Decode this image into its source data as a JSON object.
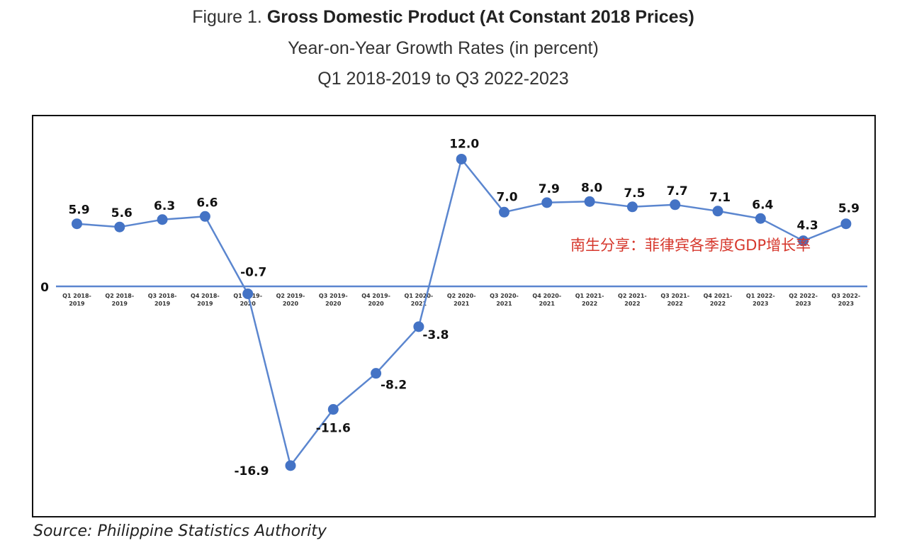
{
  "header": {
    "title_prefix": "Figure 1.",
    "title_bold": "Gross Domestic Product (At Constant 2018 Prices)",
    "subtitle": "Year-on-Year Growth Rates (in percent)",
    "period": "Q1 2018-2019 to Q3 2022-2023"
  },
  "source": "Source: Philippine Statistics Authority",
  "watermark": "南生分享：菲律宾各季度GDP增长率",
  "chart_data": {
    "type": "line",
    "title": "Gross Domestic Product (At Constant 2018 Prices)",
    "zero_label": "0",
    "categories": [
      [
        "Q1 2018-",
        "2019"
      ],
      [
        "Q2 2018-",
        "2019"
      ],
      [
        "Q3 2018-",
        "2019"
      ],
      [
        "Q4 2018-",
        "2019"
      ],
      [
        "Q1 2019-",
        "2020"
      ],
      [
        "Q2 2019-",
        "2020"
      ],
      [
        "Q3 2019-",
        "2020"
      ],
      [
        "Q4 2019-",
        "2020"
      ],
      [
        "Q1 2020-",
        "2021"
      ],
      [
        "Q2 2020-",
        "2021"
      ],
      [
        "Q3 2020-",
        "2021"
      ],
      [
        "Q4 2020-",
        "2021"
      ],
      [
        "Q1 2021-",
        "2022"
      ],
      [
        "Q2 2021-",
        "2022"
      ],
      [
        "Q3 2021-",
        "2022"
      ],
      [
        "Q4 2021-",
        "2022"
      ],
      [
        "Q1 2022-",
        "2023"
      ],
      [
        "Q2 2022-",
        "2023"
      ],
      [
        "Q3 2022-",
        "2023"
      ]
    ],
    "values": [
      5.9,
      5.6,
      6.3,
      6.6,
      -0.7,
      -16.9,
      -11.6,
      -8.2,
      -3.8,
      12.0,
      7.0,
      7.9,
      8.0,
      7.5,
      7.7,
      7.1,
      6.4,
      4.3,
      5.9
    ],
    "value_labels": [
      "5.9",
      "5.6",
      "6.3",
      "6.6",
      "-0.7",
      "-16.9",
      "-11.6",
      "-8.2",
      "-3.8",
      "12.0",
      "7.0",
      "7.9",
      "8.0",
      "7.5",
      "7.7",
      "7.1",
      "6.4",
      "4.3",
      "5.9"
    ],
    "colors": {
      "line": "#5b86cf",
      "marker": "#4473c5",
      "axis": "#5b86cf"
    }
  }
}
